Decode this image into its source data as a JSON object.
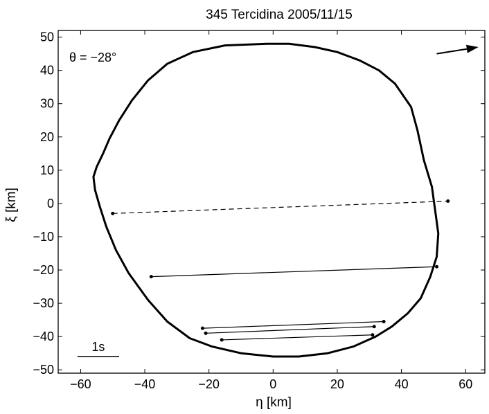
{
  "chart_data": {
    "type": "scatter",
    "title": "345 Tercidina   2005/11/15",
    "xlabel": "η [km]",
    "ylabel": "ξ [km]",
    "xlim": [
      -67,
      66
    ],
    "ylim": [
      -51,
      52
    ],
    "xticks": [
      -60,
      -40,
      -20,
      0,
      20,
      40,
      60
    ],
    "yticks": [
      -50,
      -40,
      -30,
      -20,
      -10,
      0,
      10,
      20,
      30,
      40,
      50
    ],
    "grid": false,
    "annotation_text": "θ = −28°",
    "scale_bar_label": "1s",
    "scale_bar": {
      "x": [
        -61,
        -48
      ],
      "y": -46
    },
    "direction_arrow": {
      "from": [
        51,
        45
      ],
      "to": [
        64,
        47
      ]
    },
    "profile_outline": [
      [
        -2,
        48
      ],
      [
        -15,
        47.5
      ],
      [
        -25,
        45.5
      ],
      [
        -33,
        42
      ],
      [
        -39,
        37
      ],
      [
        -44,
        31
      ],
      [
        -48,
        25
      ],
      [
        -51,
        19.5
      ],
      [
        -53,
        15
      ],
      [
        -55,
        11
      ],
      [
        -56,
        8
      ],
      [
        -55.5,
        4
      ],
      [
        -54,
        -1
      ],
      [
        -52,
        -7
      ],
      [
        -49,
        -14
      ],
      [
        -45,
        -21
      ],
      [
        -39,
        -29
      ],
      [
        -33,
        -35.5
      ],
      [
        -26,
        -40.5
      ],
      [
        -19,
        -43
      ],
      [
        -10,
        -45
      ],
      [
        0,
        -46
      ],
      [
        8,
        -46
      ],
      [
        17,
        -45
      ],
      [
        25,
        -43
      ],
      [
        32,
        -40
      ],
      [
        37,
        -37
      ],
      [
        42,
        -33
      ],
      [
        46,
        -28.5
      ],
      [
        49,
        -22
      ],
      [
        51,
        -16
      ],
      [
        51.5,
        -9
      ],
      [
        50.5,
        -2
      ],
      [
        49.5,
        5
      ],
      [
        47,
        13
      ],
      [
        45,
        22
      ],
      [
        43,
        29
      ],
      [
        38,
        36
      ],
      [
        33,
        40
      ],
      [
        27,
        43
      ],
      [
        20,
        45.5
      ],
      [
        13,
        47
      ],
      [
        5,
        48
      ]
    ],
    "chords": [
      {
        "style": "dashed",
        "start": [
          -50,
          -3
        ],
        "end": [
          54.5,
          0.7
        ]
      },
      {
        "style": "solid",
        "start": [
          -38,
          -22
        ],
        "end": [
          51,
          -19
        ]
      },
      {
        "style": "solid",
        "start": [
          -22,
          -37.5
        ],
        "end": [
          34.5,
          -35.5
        ]
      },
      {
        "style": "solid",
        "start": [
          -21,
          -39
        ],
        "end": [
          31.5,
          -37
        ]
      },
      {
        "style": "solid",
        "start": [
          -16,
          -41
        ],
        "end": [
          31,
          -39.5
        ]
      }
    ]
  }
}
